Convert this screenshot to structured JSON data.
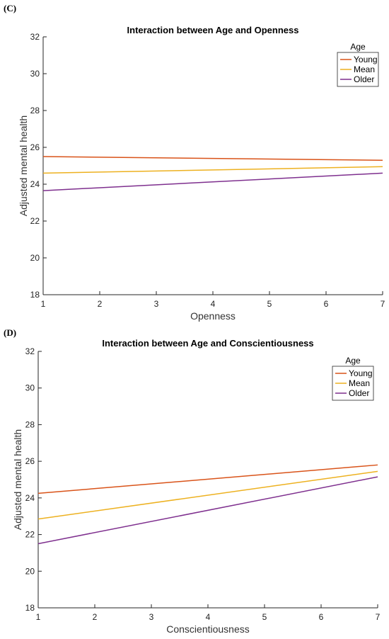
{
  "chart_data": [
    {
      "panel_label": "(C)",
      "type": "line",
      "title": "Interaction between Age and Openness",
      "xlabel": "Openness",
      "ylabel": "Adjusted mental health",
      "xlim": [
        1,
        7
      ],
      "ylim": [
        18,
        32
      ],
      "xticks": [
        1,
        2,
        3,
        4,
        5,
        6,
        7
      ],
      "yticks": [
        18,
        20,
        22,
        24,
        26,
        28,
        30,
        32
      ],
      "legend_title": "Age",
      "legend_position": "top-right",
      "grid": false,
      "series": [
        {
          "name": "Young",
          "color": "#D95319",
          "x": [
            1,
            7
          ],
          "values": [
            25.5,
            25.3
          ]
        },
        {
          "name": "Mean",
          "color": "#EDB120",
          "x": [
            1,
            7
          ],
          "values": [
            24.6,
            24.95
          ]
        },
        {
          "name": "Older",
          "color": "#7E2F8E",
          "x": [
            1,
            7
          ],
          "values": [
            23.65,
            24.6
          ]
        }
      ]
    },
    {
      "panel_label": "(D)",
      "type": "line",
      "title": "Interaction between Age and Conscientiousness",
      "xlabel": "Conscientiousness",
      "ylabel": "Adjusted mental health",
      "xlim": [
        1,
        7
      ],
      "ylim": [
        18,
        32
      ],
      "xticks": [
        1,
        2,
        3,
        4,
        5,
        6,
        7
      ],
      "yticks": [
        18,
        20,
        22,
        24,
        26,
        28,
        30,
        32
      ],
      "legend_title": "Age",
      "legend_position": "top-right",
      "grid": false,
      "series": [
        {
          "name": "Young",
          "color": "#D95319",
          "x": [
            1,
            7
          ],
          "values": [
            24.25,
            25.8
          ]
        },
        {
          "name": "Mean",
          "color": "#EDB120",
          "x": [
            1,
            7
          ],
          "values": [
            22.85,
            25.45
          ]
        },
        {
          "name": "Older",
          "color": "#7E2F8E",
          "x": [
            1,
            7
          ],
          "values": [
            21.5,
            25.15
          ]
        }
      ]
    }
  ]
}
